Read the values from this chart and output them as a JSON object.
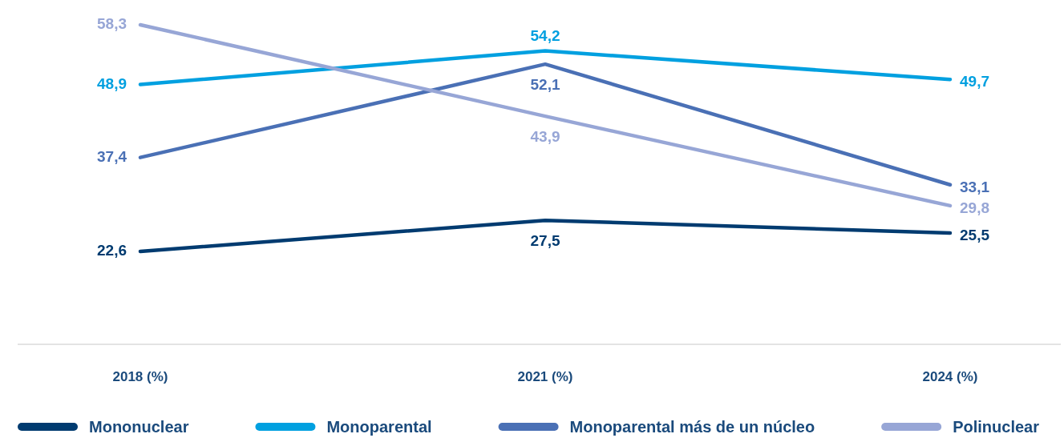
{
  "chart_data": {
    "type": "line",
    "categories": [
      "2018 (%)",
      "2021 (%)",
      "2024 (%)"
    ],
    "series": [
      {
        "name": "Mononuclear",
        "color": "#003b70",
        "values": [
          22.6,
          27.5,
          25.5
        ],
        "value_labels": [
          "22,6",
          "27,5",
          "25,5"
        ]
      },
      {
        "name": "Monoparental",
        "color": "#00a0e0",
        "values": [
          48.9,
          54.2,
          49.7
        ],
        "value_labels": [
          "48,9",
          "54,2",
          "49,7"
        ]
      },
      {
        "name": "Monoparental más de un núcleo",
        "color": "#4a70b5",
        "values": [
          37.4,
          52.1,
          33.1
        ],
        "value_labels": [
          "37,4",
          "52,1",
          "33,1"
        ]
      },
      {
        "name": "Polinuclear",
        "color": "#97a6d6",
        "values": [
          58.3,
          43.9,
          29.8
        ],
        "value_labels": [
          "58,3",
          "43,9",
          "29,8"
        ]
      }
    ],
    "legend": "bottom"
  }
}
